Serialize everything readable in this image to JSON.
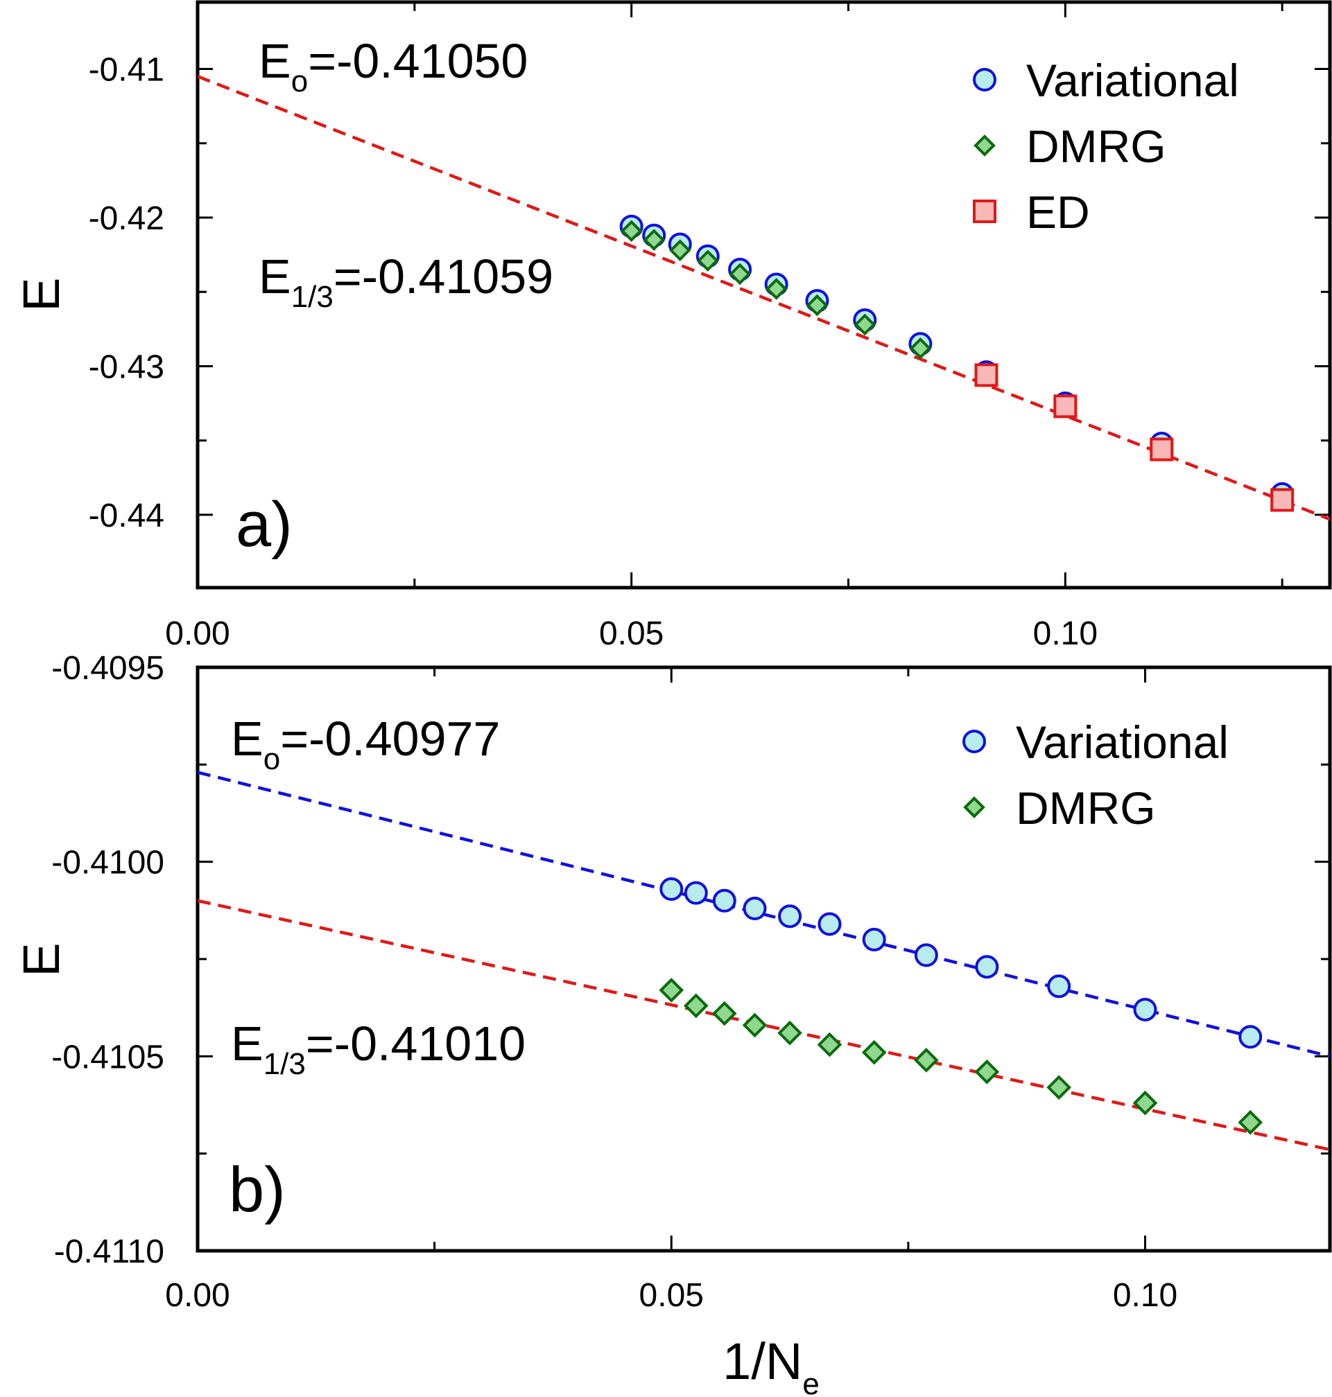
{
  "chart_data": [
    {
      "type": "scatter",
      "panel_label": "a)",
      "xlabel": "1/N",
      "xlabel_sub": "e",
      "ylabel": "E",
      "xlim": [
        0,
        0.1305
      ],
      "ylim": [
        -0.4449,
        -0.4055
      ],
      "xticks": [
        0.0,
        0.05,
        0.1
      ],
      "xtick_labels": [
        "0.00",
        "0.05",
        "0.10"
      ],
      "yticks": [
        -0.41,
        -0.42,
        -0.43,
        -0.44
      ],
      "ytick_labels": [
        "-0.41",
        "-0.42",
        "-0.43",
        "-0.44"
      ],
      "annotations": [
        {
          "main": "E",
          "sub": "o",
          "rest": "=-0.41050"
        },
        {
          "main": "E",
          "sub": "1/3",
          "rest": "=-0.41059"
        }
      ],
      "legend_position": "top-right",
      "series": [
        {
          "name": "Variational",
          "marker": "circle",
          "color": "#1010e0",
          "fill": "#b8ecec",
          "x": [
            0.05,
            0.0526,
            0.0556,
            0.0588,
            0.0625,
            0.0667,
            0.0714,
            0.0769,
            0.0833,
            0.0909,
            0.1,
            0.1111,
            0.125
          ],
          "y": [
            -0.4206,
            -0.4212,
            -0.4218,
            -0.4226,
            -0.4235,
            -0.4245,
            -0.4256,
            -0.4269,
            -0.4285,
            -0.4304,
            -0.4325,
            -0.4352,
            -0.4386
          ]
        },
        {
          "name": "DMRG",
          "marker": "diamond",
          "color": "#0c6a0c",
          "fill": "#90d890",
          "x": [
            0.05,
            0.0526,
            0.0556,
            0.0588,
            0.0625,
            0.0667,
            0.0714,
            0.0769,
            0.0833
          ],
          "y": [
            -0.4209,
            -0.4215,
            -0.4222,
            -0.4229,
            -0.4238,
            -0.4248,
            -0.4259,
            -0.4272,
            -0.4288
          ]
        },
        {
          "name": "ED",
          "marker": "square",
          "color": "#e01818",
          "fill": "#f8b8b8",
          "x": [
            0.0909,
            0.1,
            0.1111,
            0.125
          ],
          "y": [
            -0.4306,
            -0.4327,
            -0.4356,
            -0.439
          ]
        }
      ],
      "fits": [
        {
          "color": "#e01818",
          "x": [
            0.0,
            0.1305
          ],
          "y": [
            -0.4105,
            -0.4403
          ]
        }
      ]
    },
    {
      "type": "scatter",
      "panel_label": "b)",
      "xlabel": "1/N",
      "xlabel_sub": "e",
      "ylabel": "E",
      "xlim": [
        0,
        0.1195
      ],
      "ylim": [
        -0.411,
        -0.4095
      ],
      "xticks": [
        0.0,
        0.05,
        0.1
      ],
      "xtick_labels": [
        "0.00",
        "0.05",
        "0.10"
      ],
      "yticks": [
        -0.4095,
        -0.41,
        -0.4105,
        -0.411
      ],
      "ytick_labels": [
        "-0.4095",
        "-0.4100",
        "-0.4105",
        "-0.4110"
      ],
      "annotations": [
        {
          "main": "E",
          "sub": "o",
          "rest": "=-0.40977"
        },
        {
          "main": "E",
          "sub": "1/3",
          "rest": "=-0.41010"
        }
      ],
      "legend_position": "top-right",
      "series": [
        {
          "name": "Variational",
          "marker": "circle",
          "color": "#1010e0",
          "fill": "#b8ecec",
          "x": [
            0.05,
            0.0526,
            0.0556,
            0.0588,
            0.0625,
            0.0667,
            0.0714,
            0.0769,
            0.0833,
            0.0909,
            0.1,
            0.1111
          ],
          "y": [
            -0.41007,
            -0.41008,
            -0.4101,
            -0.41012,
            -0.41014,
            -0.41016,
            -0.4102,
            -0.41024,
            -0.41027,
            -0.41032,
            -0.41038,
            -0.41045
          ]
        },
        {
          "name": "DMRG",
          "marker": "diamond",
          "color": "#0c6a0c",
          "fill": "#90d890",
          "x": [
            0.05,
            0.0526,
            0.0556,
            0.0588,
            0.0625,
            0.0667,
            0.0714,
            0.0769,
            0.0833,
            0.0909,
            0.1,
            0.1111
          ],
          "y": [
            -0.41033,
            -0.41037,
            -0.41039,
            -0.41042,
            -0.41044,
            -0.41047,
            -0.41049,
            -0.41051,
            -0.41054,
            -0.41058,
            -0.41062,
            -0.41067
          ]
        }
      ],
      "fits": [
        {
          "color": "#1010e0",
          "x": [
            0.0,
            0.1195
          ],
          "y": [
            -0.40977,
            -0.4105
          ]
        },
        {
          "color": "#e01818",
          "x": [
            0.0,
            0.1195
          ],
          "y": [
            -0.4101,
            -0.41074
          ]
        }
      ]
    }
  ]
}
